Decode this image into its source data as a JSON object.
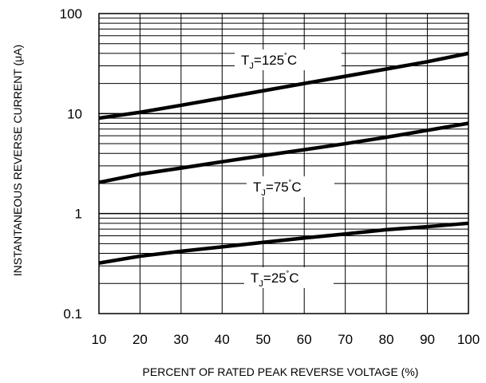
{
  "chart_data": {
    "type": "line",
    "title": "",
    "xlabel": "PERCENT OF RATED PEAK REVERSE VOLTAGE (%)",
    "ylabel": "INSTANTANEOUS REVERSE CURRENT (μA)",
    "xlim": [
      10,
      100
    ],
    "ylim": [
      0.1,
      100
    ],
    "yscale": "log",
    "grid": true,
    "legend": "none",
    "x_ticks": [
      "10",
      "20",
      "30",
      "40",
      "50",
      "60",
      "70",
      "80",
      "90",
      "100"
    ],
    "y_ticks": [
      "0.1",
      "1",
      "10",
      "100"
    ],
    "series": [
      {
        "name": "TJ=125˚C",
        "label_main": "T",
        "label_sub": "J",
        "label_rest": "=125",
        "label_deg": "˚",
        "label_unit": "C",
        "x": [
          10,
          20,
          30,
          40,
          50,
          60,
          70,
          80,
          90,
          100
        ],
        "y": [
          9.0,
          10.3,
          12.1,
          14.3,
          16.9,
          20.0,
          23.6,
          27.9,
          33.0,
          40.0
        ]
      },
      {
        "name": "TJ=75˚C",
        "label_main": "T",
        "label_sub": "J",
        "label_rest": "=75",
        "label_deg": "˚",
        "label_unit": "C",
        "x": [
          10,
          20,
          30,
          40,
          50,
          60,
          70,
          80,
          90,
          100
        ],
        "y": [
          2.05,
          2.48,
          2.85,
          3.3,
          3.8,
          4.35,
          5.0,
          5.8,
          6.8,
          8.0
        ]
      },
      {
        "name": "TJ=25˚C",
        "label_main": "T",
        "label_sub": "J",
        "label_rest": "=25",
        "label_deg": "˚",
        "label_unit": "C",
        "x": [
          10,
          20,
          30,
          40,
          50,
          60,
          70,
          80,
          90,
          100
        ],
        "y": [
          0.32,
          0.375,
          0.42,
          0.465,
          0.515,
          0.57,
          0.625,
          0.69,
          0.74,
          0.8
        ]
      }
    ]
  }
}
